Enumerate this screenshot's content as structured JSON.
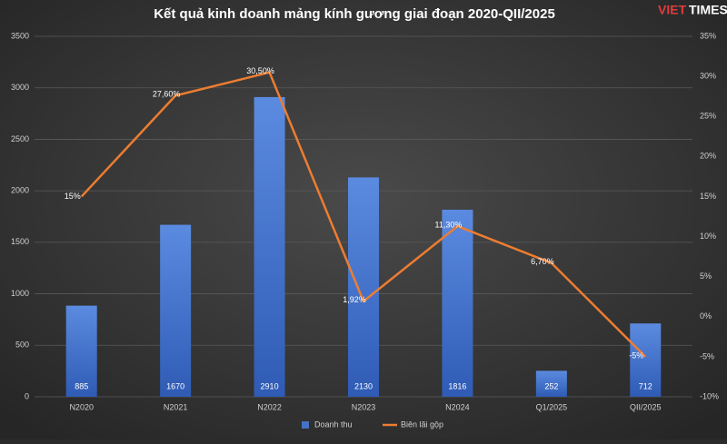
{
  "chart_data": {
    "type": "combo",
    "title": "Kết quả kinh doanh mảng kính gương giai đoạn 2020-QII/2025",
    "logo": {
      "part1": "VIET",
      "part2": "TIMES"
    },
    "categories": [
      "N2020",
      "N2021",
      "N2022",
      "N2023",
      "N2024",
      "Q1/2025",
      "QII/2025"
    ],
    "series": [
      {
        "name": "Doanh thu",
        "type": "bar",
        "color": "#4472c4",
        "values": [
          885,
          1670,
          2910,
          2130,
          1816,
          252,
          712
        ]
      },
      {
        "name": "Biên lãi gộp",
        "type": "line",
        "axis": "y2",
        "color": "#ed7d31",
        "values": [
          15,
          27.6,
          30.5,
          1.92,
          11.3,
          6.7,
          -5
        ],
        "value_labels": [
          "15%",
          "27,60%",
          "30,50%",
          "1,92%",
          "11,30%",
          "6,70%",
          "-5%"
        ]
      }
    ],
    "ylim": [
      0,
      3500
    ],
    "yticks": [
      0,
      500,
      1000,
      1500,
      2000,
      2500,
      3000,
      3500
    ],
    "y2lim": [
      -10,
      35
    ],
    "y2ticks": [
      {
        "value": -10,
        "label": "-10%"
      },
      {
        "value": -5,
        "label": "-5%"
      },
      {
        "value": 0,
        "label": "0%"
      },
      {
        "value": 5,
        "label": "5%"
      },
      {
        "value": 10,
        "label": "10%"
      },
      {
        "value": 15,
        "label": "15%"
      },
      {
        "value": 20,
        "label": "20%"
      },
      {
        "value": 25,
        "label": "25%"
      },
      {
        "value": 30,
        "label": "30%"
      },
      {
        "value": 35,
        "label": "35%"
      }
    ],
    "grid": true,
    "legend": "bottom"
  }
}
